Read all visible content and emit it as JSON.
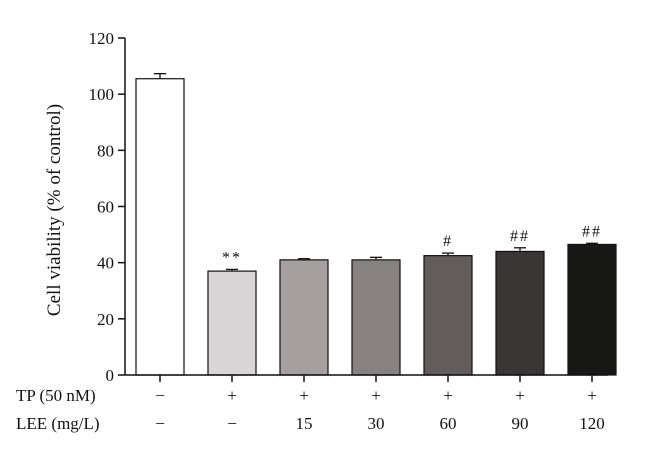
{
  "chart_data": {
    "type": "bar",
    "ylabel": "Cell viability (% of control)",
    "ylim": [
      0,
      120
    ],
    "yticks": [
      0,
      20,
      40,
      60,
      80,
      100,
      120
    ],
    "grid": false,
    "legend": "none",
    "values": [
      105.5,
      37,
      41,
      41,
      42.5,
      44,
      46.5
    ],
    "errors": [
      1.8,
      0.6,
      0.4,
      0.9,
      0.9,
      1.3,
      0.4
    ],
    "annotations": [
      "",
      "**",
      "",
      "",
      "#",
      "##",
      "##"
    ],
    "colors": [
      "#ffffff",
      "#d9d4d5",
      "#a59fa0",
      "#878181",
      "#625c5c",
      "#3a3636",
      "#181817"
    ],
    "treatment_rows": [
      {
        "label": "TP (50 nM)",
        "values": [
          "−",
          "+",
          "+",
          "+",
          "+",
          "+",
          "+"
        ]
      },
      {
        "label": "LEE (mg/L)",
        "values": [
          "−",
          "−",
          "15",
          "30",
          "60",
          "90",
          "120"
        ]
      }
    ]
  }
}
